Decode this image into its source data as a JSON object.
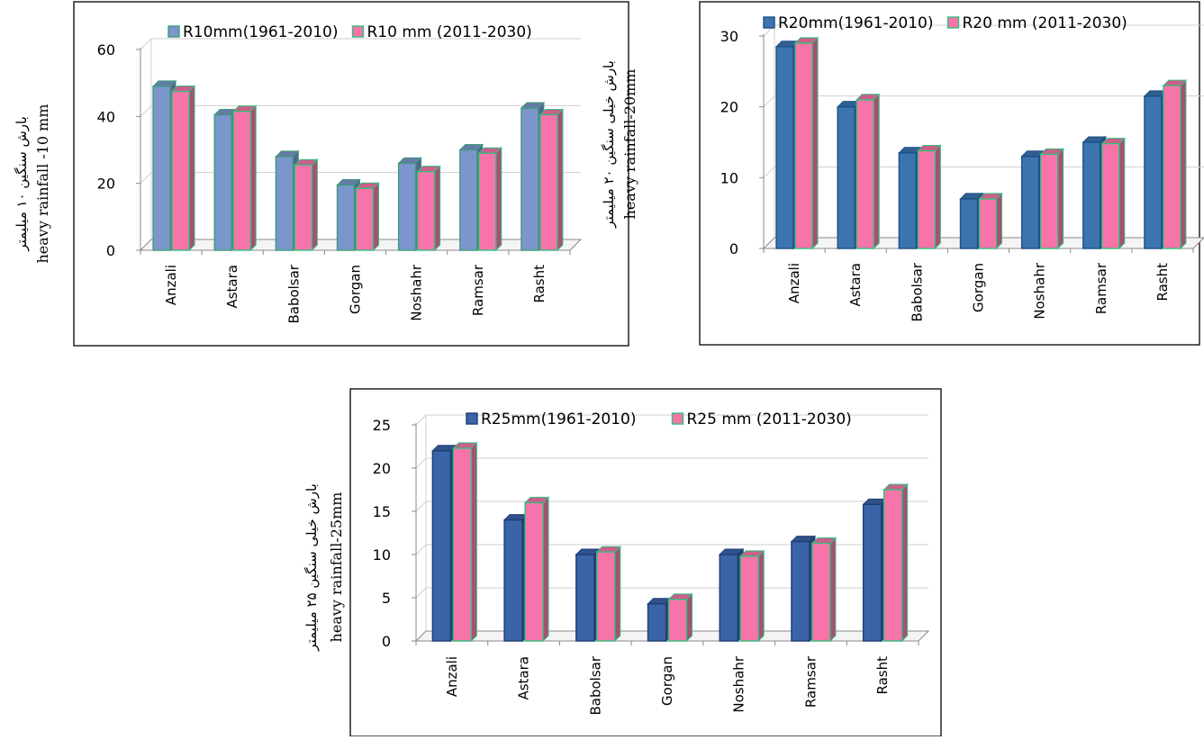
{
  "chart_data": [
    {
      "type": "bar",
      "categories": [
        "Anzali",
        "Astara",
        "Babolsar",
        "Gorgan",
        "Noshahr",
        "Ramsar",
        "Rasht"
      ],
      "series": [
        {
          "name": "R10mm(1961-2010)",
          "values": [
            49,
            40.5,
            28,
            19.5,
            26,
            30,
            42.5
          ]
        },
        {
          "name": "R10 mm (2011-2030)",
          "values": [
            47.5,
            41.5,
            25.5,
            18.5,
            23.5,
            29,
            40.5
          ]
        }
      ],
      "ylabel_fa": "بارش سنگین ۱۰ میلیمتر",
      "ylabel": "heavy rainfall -10 mm",
      "ylim": [
        0,
        60
      ],
      "yticks": [
        0,
        20,
        40,
        60
      ],
      "grid": true,
      "legend": "top",
      "colors": {
        "s1": "#7b96cc",
        "s1_border": "#3f9b7a",
        "s2": "#f774aa",
        "s2_border": "#32c07a"
      }
    },
    {
      "type": "bar",
      "categories": [
        "Anzali",
        "Astara",
        "Babolsar",
        "Gorgan",
        "Noshahr",
        "Ramsar",
        "Rasht"
      ],
      "series": [
        {
          "name": "R20mm(1961-2010)",
          "values": [
            28.5,
            20,
            13.5,
            7,
            13,
            15,
            21.5
          ]
        },
        {
          "name": "R20 mm (2011-2030)",
          "values": [
            29,
            21,
            13.8,
            7,
            13.3,
            14.8,
            23
          ]
        }
      ],
      "ylabel_fa": "بارش خیلی سنگین ۲۰ میلیمتر",
      "ylabel": "heavy rainfall-20mm",
      "ylim": [
        0,
        30
      ],
      "yticks": [
        0,
        10,
        20,
        30
      ],
      "grid": true,
      "legend": "top",
      "colors": {
        "s1": "#3c74b0",
        "s1_border": "#1c4f86",
        "s2": "#f774aa",
        "s2_border": "#32c07a"
      }
    },
    {
      "type": "bar",
      "categories": [
        "Anzali",
        "Astara",
        "Babolsar",
        "Gorgan",
        "Noshahr",
        "Ramsar",
        "Rasht"
      ],
      "series": [
        {
          "name": "R25mm(1961-2010)",
          "values": [
            22,
            14,
            10,
            4.3,
            10,
            11.5,
            15.8
          ]
        },
        {
          "name": "R25 mm (2011-2030)",
          "values": [
            22.3,
            16,
            10.3,
            4.8,
            9.8,
            11.3,
            17.5
          ]
        }
      ],
      "ylabel_fa": "بارش خیلی سنگین ۲۵ میلیمتر",
      "ylabel": "heavy rainfall-25mm",
      "ylim": [
        0,
        25
      ],
      "yticks": [
        0,
        5,
        10,
        15,
        20,
        25
      ],
      "grid": true,
      "legend": "top",
      "colors": {
        "s1": "#3b63a8",
        "s1_border": "#1e3e75",
        "s2": "#f774aa",
        "s2_border": "#32c07a"
      }
    }
  ]
}
